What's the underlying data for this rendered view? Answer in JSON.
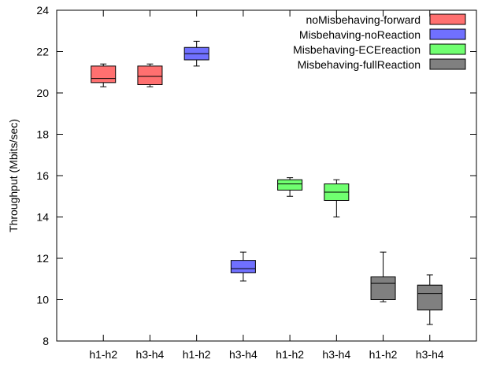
{
  "chart_data": {
    "type": "box",
    "ylabel": "Throughput (Mbits/sec)",
    "xlabel": "",
    "ylim": [
      8,
      24
    ],
    "yticks": [
      8,
      10,
      12,
      14,
      16,
      18,
      20,
      22,
      24
    ],
    "categories": [
      "h1-h2",
      "h3-h4",
      "h1-h2",
      "h3-h4",
      "h1-h2",
      "h3-h4",
      "h1-h2",
      "h3-h4"
    ],
    "legend_position": "top-right",
    "grid": false,
    "series": [
      {
        "name": "noMisbehaving-forward",
        "color": "#ff7070",
        "boxes": [
          {
            "category_index": 0,
            "min": 20.3,
            "q1": 20.5,
            "median": 20.7,
            "q3": 21.3,
            "max": 21.4
          },
          {
            "category_index": 1,
            "min": 20.3,
            "q1": 20.4,
            "median": 20.8,
            "q3": 21.3,
            "max": 21.4
          }
        ]
      },
      {
        "name": "Misbehaving-noReaction",
        "color": "#7070ff",
        "boxes": [
          {
            "category_index": 2,
            "min": 21.3,
            "q1": 21.6,
            "median": 21.9,
            "q3": 22.2,
            "max": 22.5
          },
          {
            "category_index": 3,
            "min": 10.9,
            "q1": 11.3,
            "median": 11.5,
            "q3": 11.9,
            "max": 12.3
          }
        ]
      },
      {
        "name": "Misbehaving-ECEreaction",
        "color": "#70ff70",
        "boxes": [
          {
            "category_index": 4,
            "min": 15.0,
            "q1": 15.3,
            "median": 15.6,
            "q3": 15.8,
            "max": 15.9
          },
          {
            "category_index": 5,
            "min": 14.0,
            "q1": 14.8,
            "median": 15.2,
            "q3": 15.6,
            "max": 15.8
          }
        ]
      },
      {
        "name": "Misbehaving-fullReaction",
        "color": "#808080",
        "boxes": [
          {
            "category_index": 6,
            "min": 9.9,
            "q1": 10.0,
            "median": 10.8,
            "q3": 11.1,
            "max": 12.3
          },
          {
            "category_index": 7,
            "min": 8.8,
            "q1": 9.5,
            "median": 10.3,
            "q3": 10.7,
            "max": 11.2
          }
        ]
      }
    ]
  }
}
